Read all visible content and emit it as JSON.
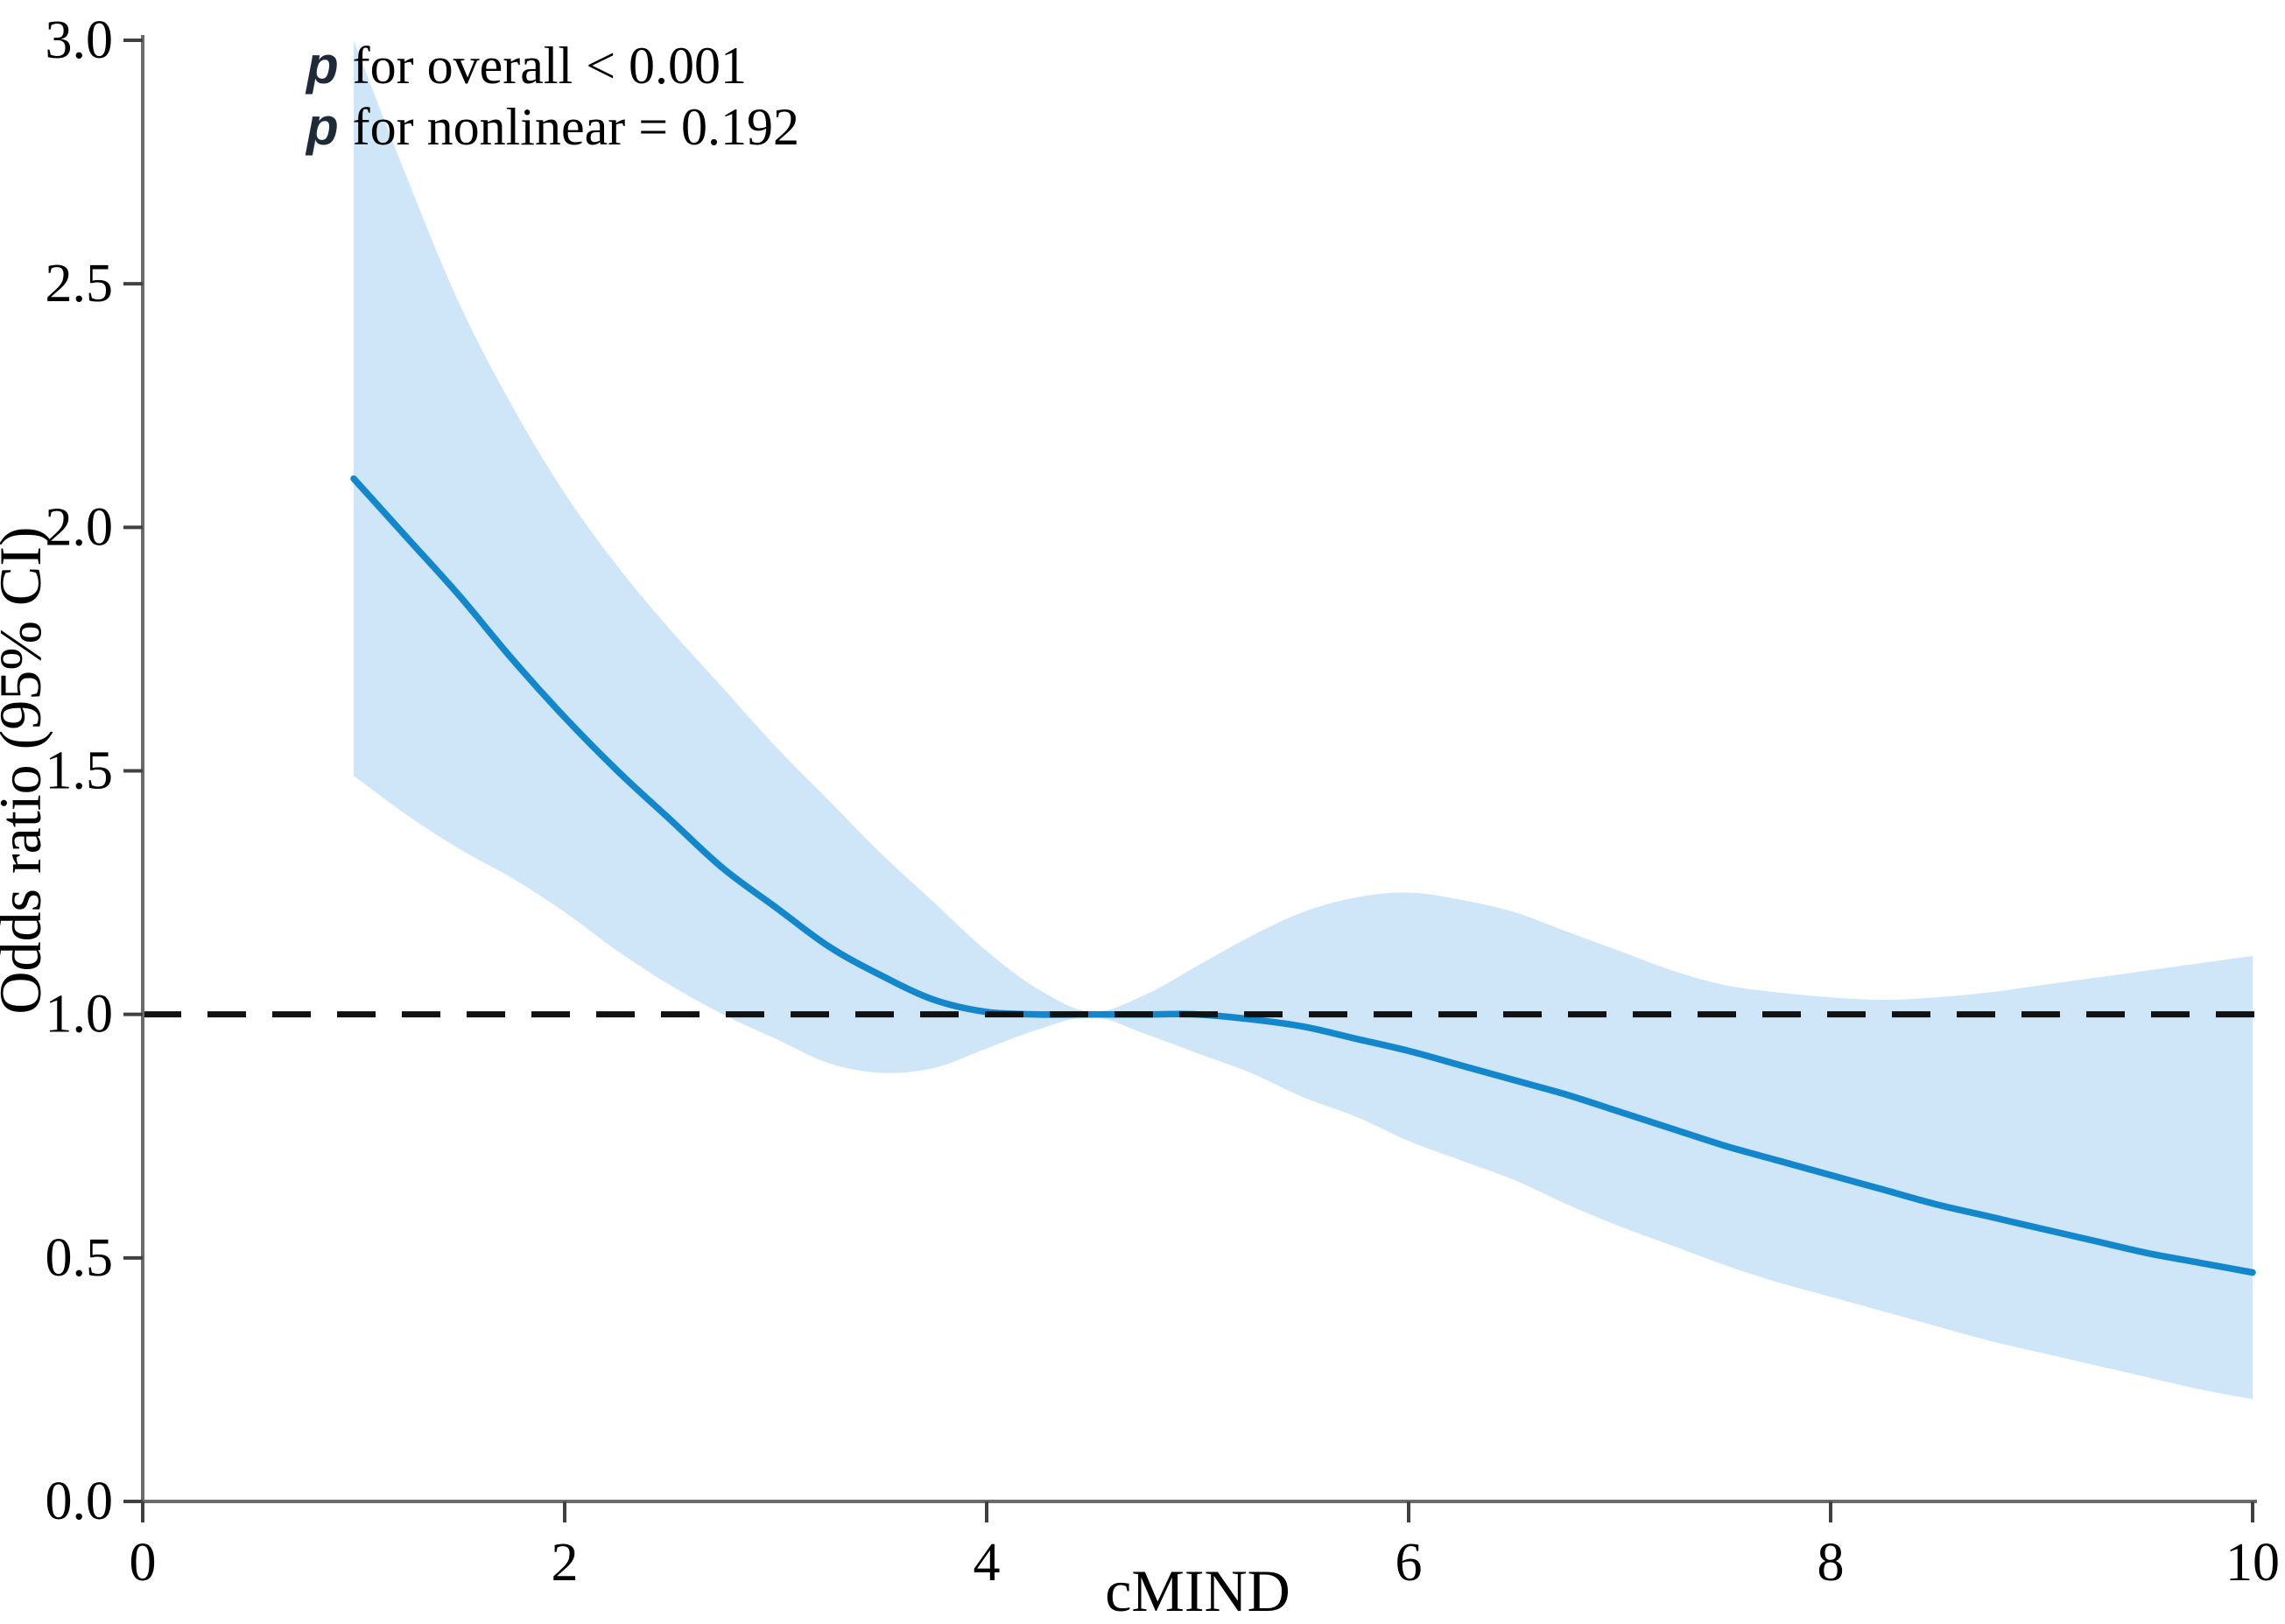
{
  "figure": {
    "annotation": {
      "lines": [
        {
          "prefix": "p",
          "text": "for overall < 0.001"
        },
        {
          "prefix": "p",
          "text": "for nonlinear = 0.192"
        }
      ]
    }
  },
  "chart_data": {
    "type": "line",
    "title": "",
    "xlabel": "cMIND",
    "ylabel": "Odds ratio (95% CI)",
    "xlim": [
      0,
      10
    ],
    "ylim": [
      0.0,
      3.0
    ],
    "grid": false,
    "legend": false,
    "x_tick_labels": [
      "0",
      "2",
      "4",
      "6",
      "8",
      "10"
    ],
    "x_tick_values": [
      0,
      2,
      4,
      6,
      8,
      10
    ],
    "y_tick_labels": [
      "0.0",
      "0.5",
      "1.0",
      "1.5",
      "2.0",
      "2.5",
      "3.0"
    ],
    "y_tick_values": [
      0,
      0.5,
      1,
      1.5,
      2,
      2.5,
      3
    ],
    "reference_line_y": 1.0,
    "annotations": [
      "p for overall < 0.001",
      "p for nonlinear = 0.192"
    ],
    "x": [
      1,
      1.25,
      1.5,
      1.75,
      2,
      2.25,
      2.5,
      2.75,
      3,
      3.25,
      3.5,
      3.75,
      4,
      4.25,
      4.5,
      4.75,
      5,
      5.25,
      5.5,
      5.75,
      6,
      6.25,
      6.5,
      6.75,
      7,
      7.25,
      7.5,
      7.75,
      8,
      8.25,
      8.5,
      8.75,
      9,
      9.25,
      9.5,
      9.75,
      10
    ],
    "series": [
      {
        "name": "Odds ratio",
        "values": [
          2.1,
          1.98,
          1.86,
          1.73,
          1.61,
          1.5,
          1.4,
          1.3,
          1.22,
          1.14,
          1.08,
          1.03,
          1.005,
          1.0,
          1.0,
          1.0,
          1.0,
          0.99,
          0.975,
          0.95,
          0.925,
          0.895,
          0.865,
          0.835,
          0.8,
          0.765,
          0.73,
          0.7,
          0.67,
          0.64,
          0.61,
          0.585,
          0.56,
          0.535,
          0.51,
          0.49,
          0.47
        ]
      },
      {
        "name": "95% CI upper",
        "values": [
          3.0,
          2.72,
          2.46,
          2.25,
          2.07,
          1.92,
          1.79,
          1.67,
          1.55,
          1.44,
          1.33,
          1.23,
          1.13,
          1.05,
          1.005,
          1.04,
          1.1,
          1.16,
          1.21,
          1.24,
          1.25,
          1.235,
          1.21,
          1.17,
          1.13,
          1.09,
          1.06,
          1.045,
          1.035,
          1.03,
          1.035,
          1.045,
          1.06,
          1.075,
          1.09,
          1.105,
          1.12
        ]
      },
      {
        "name": "95% CI lower",
        "values": [
          1.49,
          1.41,
          1.34,
          1.28,
          1.21,
          1.13,
          1.06,
          1.0,
          0.95,
          0.9,
          0.88,
          0.89,
          0.93,
          0.97,
          0.995,
          0.96,
          0.92,
          0.88,
          0.83,
          0.79,
          0.74,
          0.7,
          0.66,
          0.61,
          0.565,
          0.525,
          0.485,
          0.45,
          0.42,
          0.39,
          0.36,
          0.33,
          0.305,
          0.28,
          0.255,
          0.23,
          0.21
        ]
      }
    ],
    "colors": {
      "line": "#1287cc",
      "band": "#cfe5f8",
      "reference_line": "#111111",
      "axis": "#6b6b6b",
      "tick": "#404040",
      "text": "#000000",
      "p_symbol": "#1e2a38"
    }
  }
}
